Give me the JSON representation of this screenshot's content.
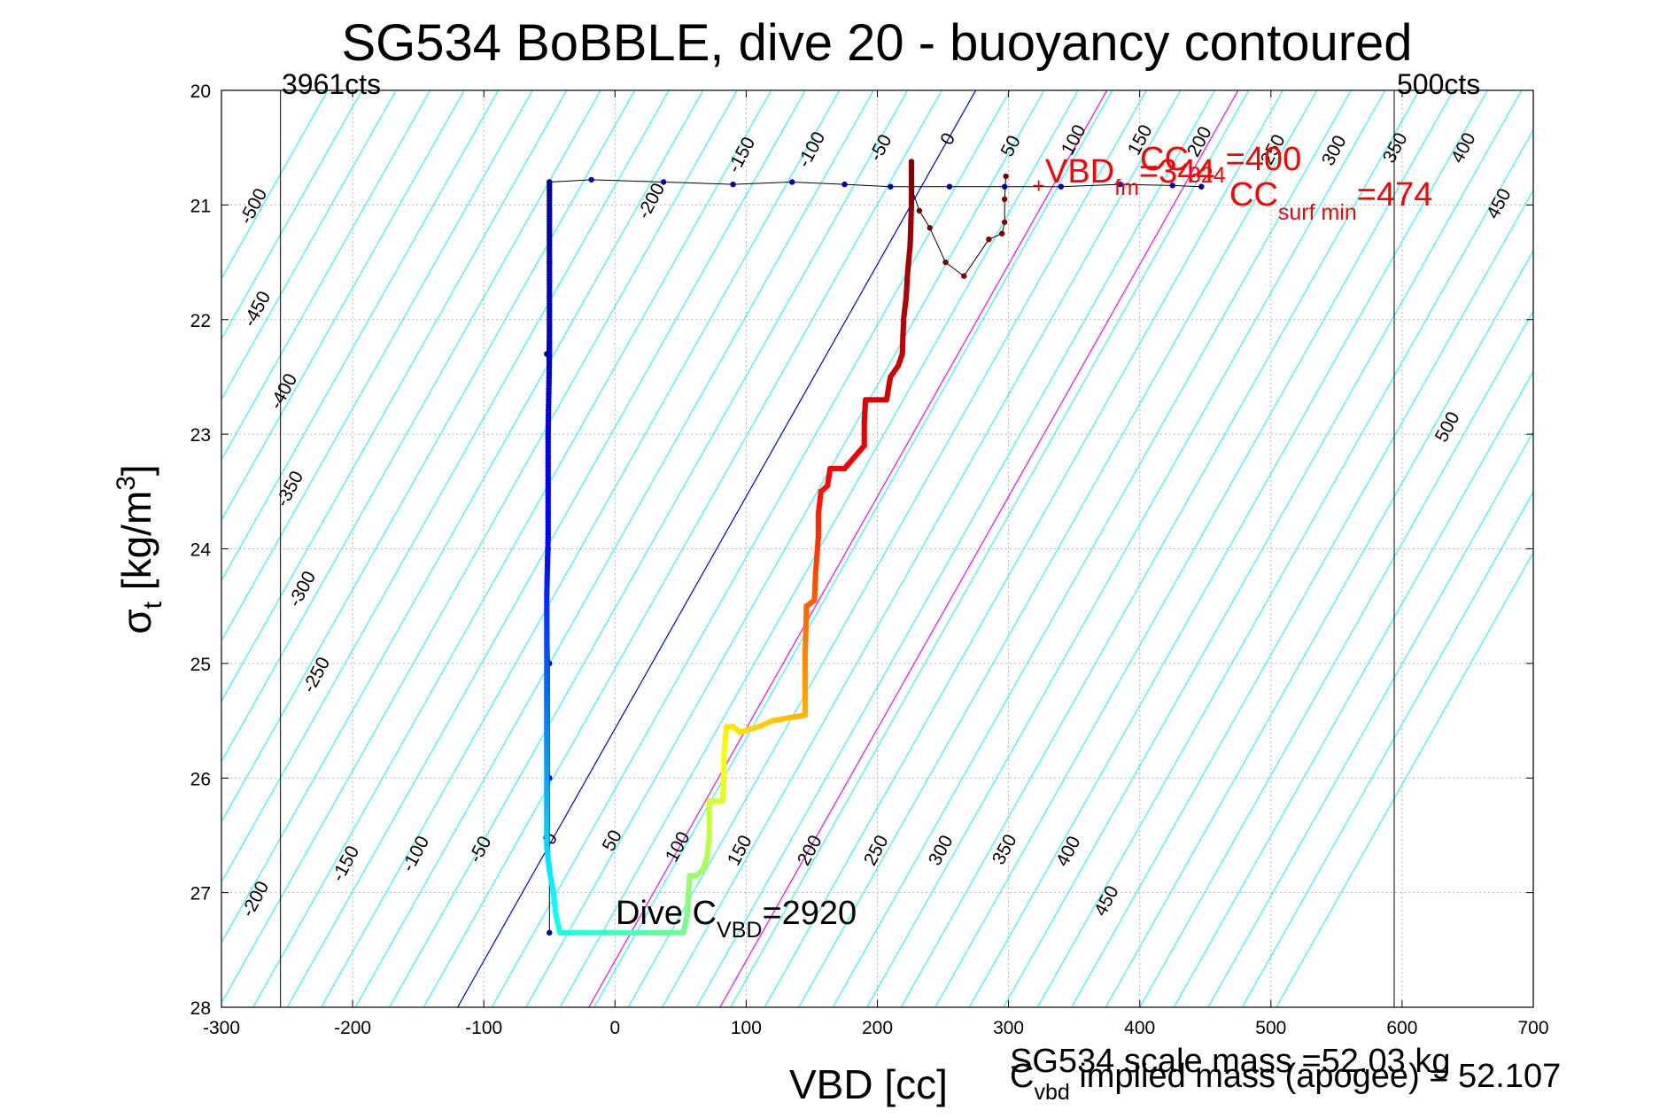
{
  "chart_data": {
    "type": "scatter",
    "title": "SG534 BoBBLE, dive 20 - buoyancy contoured",
    "xlabel": "VBD [cc]",
    "ylabel_main": "σ",
    "ylabel_sub": "t",
    "ylabel_units": " [kg/m",
    "ylabel_sup": "3",
    "ylabel_close": "]",
    "xlim": [
      -300,
      700
    ],
    "ylim": [
      20,
      28
    ],
    "y_reversed": true,
    "grid": true,
    "x_ticks": [
      -300,
      -200,
      -100,
      0,
      100,
      200,
      300,
      400,
      500,
      600,
      700
    ],
    "y_ticks": [
      20,
      21,
      22,
      23,
      24,
      25,
      26,
      27,
      28
    ],
    "counts_lines": {
      "left": {
        "x": -255,
        "label": "3961cts"
      },
      "right": {
        "x": 594,
        "label": "500cts"
      }
    },
    "buoyancy_contours": {
      "levels": [
        -500,
        -450,
        -400,
        -350,
        -300,
        -250,
        -200,
        -150,
        -100,
        -50,
        0,
        50,
        100,
        150,
        200,
        250,
        300,
        350,
        400,
        450,
        500
      ],
      "color": "#00ffff",
      "top_labels": [
        "-500",
        "-450",
        "-400",
        "-350",
        "-300",
        "-250",
        "-200",
        "-150",
        "-100",
        "-50",
        "0",
        "50",
        "100",
        "150",
        "200",
        "250",
        "300",
        "350",
        "400",
        "450",
        "500"
      ],
      "bottom_labels": [
        "-200",
        "-150",
        "-100",
        "-50",
        "0",
        "50",
        "100",
        "150",
        "200",
        "250",
        "300",
        "350",
        "400",
        "450"
      ]
    },
    "reference_lines": [
      {
        "name": "neutral",
        "color": "#0000ff",
        "points": [
          [
            -120,
            28
          ],
          [
            275,
            20
          ]
        ]
      },
      {
        "name": "magenta-1",
        "color": "#ff00ff",
        "points": [
          [
            -20,
            28
          ],
          [
            375,
            20
          ]
        ]
      },
      {
        "name": "magenta-2",
        "color": "#ff00ff",
        "points": [
          [
            80,
            28
          ],
          [
            475,
            20
          ]
        ]
      }
    ],
    "descent": {
      "color_gradient": [
        "#00008f",
        "#0000ff",
        "#00ffff",
        "#ffff00",
        "#ff0000",
        "#800000"
      ],
      "points": [
        [
          -50,
          20.8
        ],
        [
          -50,
          22.3
        ],
        [
          -51,
          23.0
        ],
        [
          -51,
          23.4
        ],
        [
          -51,
          23.9
        ],
        [
          -52,
          24.4
        ],
        [
          -52,
          25.0
        ],
        [
          -52,
          25.6
        ],
        [
          -52,
          26.2
        ],
        [
          -52,
          26.6
        ],
        [
          -50,
          26.8
        ],
        [
          -47,
          27.0
        ],
        [
          -45,
          27.2
        ],
        [
          -42,
          27.35
        ],
        [
          -20,
          27.35
        ],
        [
          0,
          27.35
        ],
        [
          20,
          27.35
        ],
        [
          40,
          27.35
        ],
        [
          52,
          27.35
        ],
        [
          55,
          27.2
        ],
        [
          56,
          27.0
        ],
        [
          57,
          26.85
        ],
        [
          62,
          26.85
        ],
        [
          67,
          26.8
        ],
        [
          70,
          26.7
        ],
        [
          72,
          26.5
        ],
        [
          72,
          26.2
        ],
        [
          82,
          26.2
        ],
        [
          83,
          26.0
        ],
        [
          83,
          25.8
        ],
        [
          85,
          25.55
        ],
        [
          90,
          25.55
        ],
        [
          95,
          25.6
        ],
        [
          110,
          25.55
        ],
        [
          120,
          25.5
        ],
        [
          145,
          25.45
        ],
        [
          145,
          25.2
        ],
        [
          145,
          24.9
        ],
        [
          146,
          24.5
        ],
        [
          152,
          24.45
        ],
        [
          153,
          24.2
        ],
        [
          155,
          23.9
        ],
        [
          155,
          23.7
        ],
        [
          157,
          23.5
        ],
        [
          162,
          23.45
        ],
        [
          164,
          23.3
        ],
        [
          175,
          23.3
        ],
        [
          190,
          23.1
        ],
        [
          190,
          22.9
        ],
        [
          191,
          22.7
        ],
        [
          200,
          22.7
        ],
        [
          207,
          22.7
        ],
        [
          210,
          22.5
        ],
        [
          216,
          22.4
        ],
        [
          219,
          22.3
        ],
        [
          220,
          22.0
        ],
        [
          222,
          21.8
        ],
        [
          223,
          21.6
        ],
        [
          225,
          21.35
        ],
        [
          226,
          21.0
        ],
        [
          226,
          20.8
        ],
        [
          226,
          20.6
        ]
      ]
    },
    "climb": {
      "color": "#0000b0",
      "points": [
        [
          -50,
          27.35
        ],
        [
          -50,
          26.0
        ],
        [
          -50,
          25.0
        ],
        [
          -51,
          24.0
        ],
        [
          -51,
          23.0
        ],
        [
          -52,
          22.3
        ],
        [
          -50,
          21.5
        ],
        [
          -50,
          20.8
        ],
        [
          -18,
          20.78
        ],
        [
          37,
          20.8
        ],
        [
          90,
          20.82
        ],
        [
          135,
          20.8
        ],
        [
          175,
          20.82
        ],
        [
          210,
          20.84
        ],
        [
          255,
          20.84
        ],
        [
          297,
          20.84
        ],
        [
          340,
          20.84
        ],
        [
          385,
          20.82
        ],
        [
          425,
          20.83
        ],
        [
          447,
          20.84
        ]
      ]
    },
    "apogee_wiggle": {
      "color": "#800000",
      "points": [
        [
          226,
          20.85
        ],
        [
          232,
          21.05
        ],
        [
          240,
          21.2
        ],
        [
          252,
          21.5
        ],
        [
          266,
          21.62
        ],
        [
          285,
          21.3
        ],
        [
          295,
          21.25
        ],
        [
          297,
          21.15
        ],
        [
          297,
          20.95
        ],
        [
          298,
          20.75
        ]
      ]
    },
    "marker": {
      "x": 323,
      "y": 20.83,
      "color": "#ff0000",
      "glyph": "+"
    },
    "annotations": {
      "vbd_fm": {
        "main": "VBD",
        "sub": "fm",
        "value": "=344"
      },
      "cc_top": {
        "main": "CC",
        "sub": "324",
        "value": "=400"
      },
      "cc_surf": {
        "main": "CC",
        "sub": "surf min",
        "value": "=474"
      },
      "dive_cvbd": {
        "main": "Dive C",
        "sub": "VBD",
        "value": "=2920"
      },
      "scale_mass": "SG534 scale mass =52.03 kg",
      "cvbd_implied": {
        "main": "C",
        "sub": "vbd",
        "value": " implied mass (apogee) = 52.107"
      }
    }
  }
}
